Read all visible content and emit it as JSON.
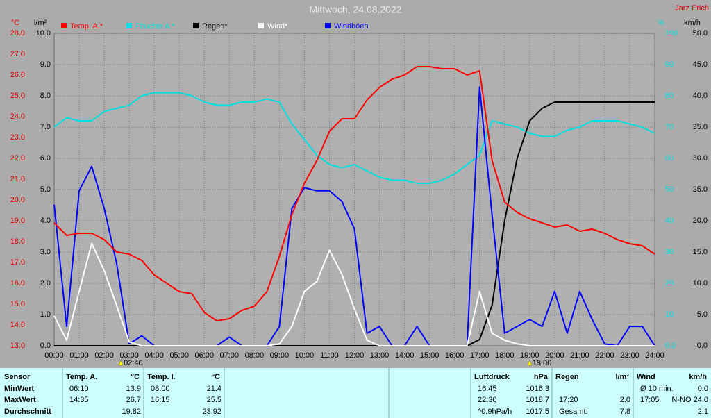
{
  "chart_data": {
    "type": "line",
    "title": "Mittwoch, 24.08.2022",
    "author": "Jarz Erich",
    "xlim": [
      0,
      24
    ],
    "xticks": [
      {
        "value": 0,
        "label": "00:00"
      },
      {
        "value": 1,
        "label": "01:00"
      },
      {
        "value": 2,
        "label": "02:00"
      },
      {
        "value": 3,
        "label": "03:00"
      },
      {
        "value": 4,
        "label": "04:00"
      },
      {
        "value": 5,
        "label": "05:00"
      },
      {
        "value": 6,
        "label": "06:00"
      },
      {
        "value": 7,
        "label": "07:00"
      },
      {
        "value": 8,
        "label": "08:00"
      },
      {
        "value": 9,
        "label": "09:00"
      },
      {
        "value": 10,
        "label": "10:00"
      },
      {
        "value": 11,
        "label": "11:00"
      },
      {
        "value": 12,
        "label": "12:00"
      },
      {
        "value": 13,
        "label": "13:00"
      },
      {
        "value": 14,
        "label": "14:00"
      },
      {
        "value": 15,
        "label": "15:00"
      },
      {
        "value": 16,
        "label": "16:00"
      },
      {
        "value": 17,
        "label": "17:00"
      },
      {
        "value": 18,
        "label": "18:00"
      },
      {
        "value": 19,
        "label": "19:00"
      },
      {
        "value": 20,
        "label": "20:00"
      },
      {
        "value": 21,
        "label": "21:00"
      },
      {
        "value": 22,
        "label": "22:00"
      },
      {
        "value": 23,
        "label": "23:00"
      },
      {
        "value": 24,
        "label": "24:00"
      }
    ],
    "sun_markers": [
      {
        "value": 2.6667,
        "label": "02:40"
      },
      {
        "value": 19,
        "label": "19:00"
      }
    ],
    "ylabel": "°C",
    "ylim": [
      13,
      28
    ],
    "yticks": [
      {
        "value": 13,
        "label": "13.0"
      },
      {
        "value": 14,
        "label": "14.0"
      },
      {
        "value": 15,
        "label": "15.0"
      },
      {
        "value": 16,
        "label": "16.0"
      },
      {
        "value": 17,
        "label": "17.0"
      },
      {
        "value": 18,
        "label": "18.0"
      },
      {
        "value": 19,
        "label": "19.0"
      },
      {
        "value": 20,
        "label": "20.0"
      },
      {
        "value": 21,
        "label": "21.0"
      },
      {
        "value": 22,
        "label": "22.0"
      },
      {
        "value": 23,
        "label": "23.0"
      },
      {
        "value": 24,
        "label": "24.0"
      },
      {
        "value": 25,
        "label": "25.0"
      },
      {
        "value": 26,
        "label": "26.0"
      },
      {
        "value": 27,
        "label": "27.0"
      },
      {
        "value": 28,
        "label": "28.0"
      }
    ],
    "y3label": "l/m²",
    "y3lim": [
      0,
      10
    ],
    "y3ticks": [
      {
        "value": 0,
        "label": "0.0"
      },
      {
        "value": 1,
        "label": "1.0"
      },
      {
        "value": 2,
        "label": "2.0"
      },
      {
        "value": 3,
        "label": "3.0"
      },
      {
        "value": 4,
        "label": "4.0"
      },
      {
        "value": 5,
        "label": "5.0"
      },
      {
        "value": 6,
        "label": "6.0"
      },
      {
        "value": 7,
        "label": "7.0"
      },
      {
        "value": 8,
        "label": "8.0"
      },
      {
        "value": 9,
        "label": "9.0"
      },
      {
        "value": 10,
        "label": "10.0"
      }
    ],
    "y2label": "%",
    "y2lim": [
      0,
      100
    ],
    "y2ticks": [
      {
        "value": 0,
        "label": "0.0"
      },
      10,
      20,
      30,
      40,
      50,
      60,
      70,
      80,
      90,
      100
    ],
    "y4label": "km/h",
    "y4lim": [
      0,
      50
    ],
    "y4ticks": [
      {
        "value": 0,
        "label": "0.0"
      },
      {
        "value": 5,
        "label": "5.0"
      },
      {
        "value": 10,
        "label": "10.0"
      },
      {
        "value": 15,
        "label": "15.0"
      },
      {
        "value": 20,
        "label": "20.0"
      },
      {
        "value": 25,
        "label": "25.0"
      },
      {
        "value": 30,
        "label": "30.0"
      },
      {
        "value": 35,
        "label": "35.0"
      },
      {
        "value": 40,
        "label": "40.0"
      },
      {
        "value": 45,
        "label": "45.0"
      },
      {
        "value": 50,
        "label": "50.0"
      }
    ],
    "grid": true,
    "x": [
      0,
      0.5,
      1,
      1.5,
      2,
      2.5,
      3,
      3.5,
      4,
      4.5,
      5,
      5.5,
      6,
      6.5,
      7,
      7.5,
      8,
      8.5,
      9,
      9.5,
      10,
      10.5,
      11,
      11.5,
      12,
      12.5,
      13,
      13.5,
      14,
      14.5,
      15,
      15.5,
      16,
      16.5,
      17,
      17.5,
      18,
      18.5,
      19,
      19.5,
      20,
      20.5,
      21,
      21.5,
      22,
      22.5,
      23,
      23.5,
      24
    ],
    "series": [
      {
        "name": "Temp. A.*",
        "color": "#ff0000",
        "axis": "y",
        "values": [
          18.9,
          18.3,
          18.4,
          18.4,
          18.1,
          17.5,
          17.4,
          17.1,
          16.4,
          16.0,
          15.6,
          15.5,
          14.6,
          14.2,
          14.3,
          14.7,
          14.9,
          15.6,
          17.3,
          19.3,
          20.8,
          21.9,
          23.3,
          23.9,
          23.9,
          24.8,
          25.4,
          25.8,
          26.0,
          26.4,
          26.4,
          26.3,
          26.3,
          26.0,
          26.2,
          21.9,
          19.9,
          19.4,
          19.1,
          18.9,
          18.7,
          18.8,
          18.5,
          18.6,
          18.4,
          18.1,
          17.9,
          17.8,
          17.4
        ]
      },
      {
        "name": "Feuchte A.*",
        "color": "#00e0e0",
        "axis": "y2",
        "values": [
          70,
          73,
          72,
          72,
          75,
          76,
          77,
          80,
          81,
          81,
          81,
          80,
          78,
          77,
          77,
          78,
          78,
          79,
          78,
          71,
          66,
          61,
          58,
          57,
          58,
          56,
          54,
          53,
          53,
          52,
          52,
          53,
          55,
          58,
          61,
          72,
          71,
          70,
          68,
          67,
          67,
          69,
          70,
          72,
          72,
          72,
          71,
          70,
          68
        ]
      },
      {
        "name": "Regen*",
        "color": "#000000",
        "axis": "y3",
        "values": [
          0,
          0,
          0,
          0,
          0,
          0,
          0,
          0,
          0,
          0,
          0,
          0,
          0,
          0,
          0,
          0,
          0,
          0,
          0,
          0,
          0,
          0,
          0,
          0,
          0,
          0,
          0,
          0,
          0,
          0,
          0,
          0,
          0,
          0,
          0.2,
          1.3,
          4.0,
          6.0,
          7.2,
          7.6,
          7.8,
          7.8,
          7.8,
          7.8,
          7.8,
          7.8,
          7.8,
          7.8,
          7.8
        ]
      },
      {
        "name": "Wind*",
        "color": "#ffffff",
        "axis": "y4",
        "values": [
          4.8,
          0.9,
          8.7,
          16.4,
          12,
          6.4,
          0.6,
          0,
          0,
          0,
          0,
          0,
          0,
          0,
          0,
          0,
          0,
          0,
          0.3,
          3.1,
          8.7,
          10.3,
          15.3,
          11.4,
          5.9,
          0.9,
          0,
          0,
          0,
          0,
          0,
          0,
          0,
          0,
          8.7,
          2,
          0.9,
          0.3,
          0,
          0,
          0,
          0,
          0,
          0,
          0,
          0,
          0,
          0,
          0
        ]
      },
      {
        "name": "Windböen",
        "color": "#0000ff",
        "axis": "y4",
        "values": [
          22.6,
          3.1,
          24.8,
          28.7,
          22,
          13.1,
          0.3,
          1.6,
          0,
          0,
          0,
          0,
          0,
          0,
          1.4,
          0,
          0,
          0,
          3.1,
          22,
          25.3,
          24.8,
          24.8,
          23.1,
          18.7,
          2,
          3.1,
          0,
          0,
          3.1,
          0,
          0,
          0,
          0,
          41.4,
          20.9,
          2,
          3.1,
          4.2,
          3.1,
          8.7,
          2,
          8.7,
          4.2,
          0.3,
          0,
          3.1,
          3.1,
          0
        ]
      }
    ]
  },
  "table": {
    "row_labels": [
      "Sensor",
      "MinWert",
      "MaxWert",
      "Durchschnitt"
    ],
    "panels": [
      {
        "title": "Temp. A.",
        "unit": "°C",
        "rows": [
          {
            "time": "06:10",
            "value": "13.9"
          },
          {
            "time": "14:35",
            "value": "26.7"
          },
          {
            "value": "19.82"
          }
        ]
      },
      {
        "title": "Temp. I.",
        "unit": "°C",
        "rows": [
          {
            "time": "08:00",
            "value": "21.4"
          },
          {
            "time": "16:15",
            "value": "25.5"
          },
          {
            "value": "23.92"
          }
        ]
      },
      {
        "title": "Luftdruck",
        "unit": "hPa",
        "rows": [
          {
            "time": "16:45",
            "value": "1016.3"
          },
          {
            "time": "22:30",
            "value": "1018.7"
          },
          {
            "time": "^0.9hPa/h",
            "value": "1017.5"
          }
        ]
      },
      {
        "title": "Regen",
        "unit": "l/m²",
        "rows": [
          {},
          {
            "time": "17:20",
            "value": "2.0"
          },
          {
            "time": "Gesamt:",
            "value": "7.8"
          }
        ]
      },
      {
        "title": "Wind",
        "unit": "km/h",
        "rows": [
          {
            "time": "Ø 10 min.",
            "value": "0.0"
          },
          {
            "time": "17:05",
            "value": "N-NO 24.0"
          },
          {
            "value": "2.1"
          }
        ]
      }
    ]
  }
}
